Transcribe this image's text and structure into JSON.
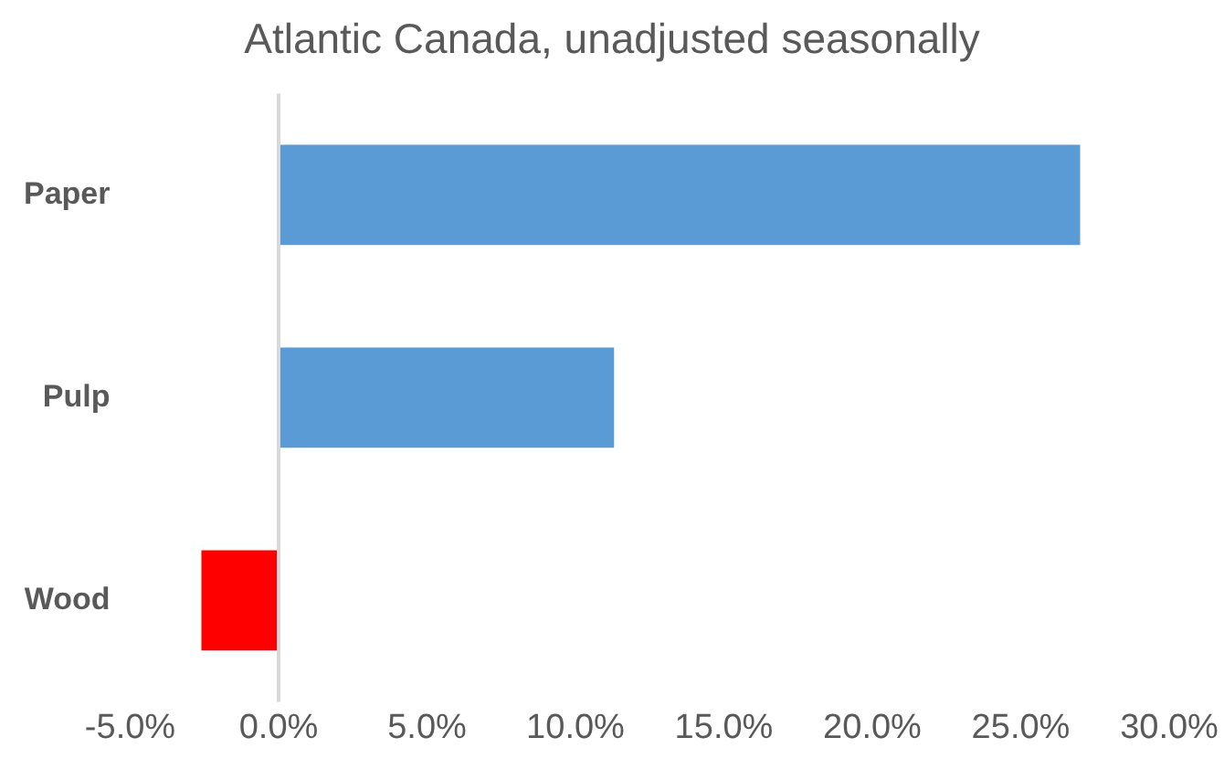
{
  "chart_data": {
    "type": "bar",
    "orientation": "horizontal",
    "title": "Atlantic Canada, unadjusted seasonally",
    "categories": [
      "Paper",
      "Pulp",
      "Wood"
    ],
    "values": [
      27.0,
      11.3,
      -2.6
    ],
    "colors": [
      "#5b9bd5",
      "#5b9bd5",
      "#ff0000"
    ],
    "xlim": [
      -5,
      30
    ],
    "xticks": [
      {
        "value": -5,
        "label": "-5.0%"
      },
      {
        "value": 0,
        "label": "0.0%"
      },
      {
        "value": 5,
        "label": "5.0%"
      },
      {
        "value": 10,
        "label": "10.0%"
      },
      {
        "value": 15,
        "label": "15.0%"
      },
      {
        "value": 20,
        "label": "20.0%"
      },
      {
        "value": 25,
        "label": "25.0%"
      },
      {
        "value": 30,
        "label": "30.0%"
      }
    ],
    "ref_lines": [
      {
        "axis": "x",
        "value": 0,
        "color": "#d9d9d9"
      }
    ],
    "grid": false,
    "legend": false
  }
}
